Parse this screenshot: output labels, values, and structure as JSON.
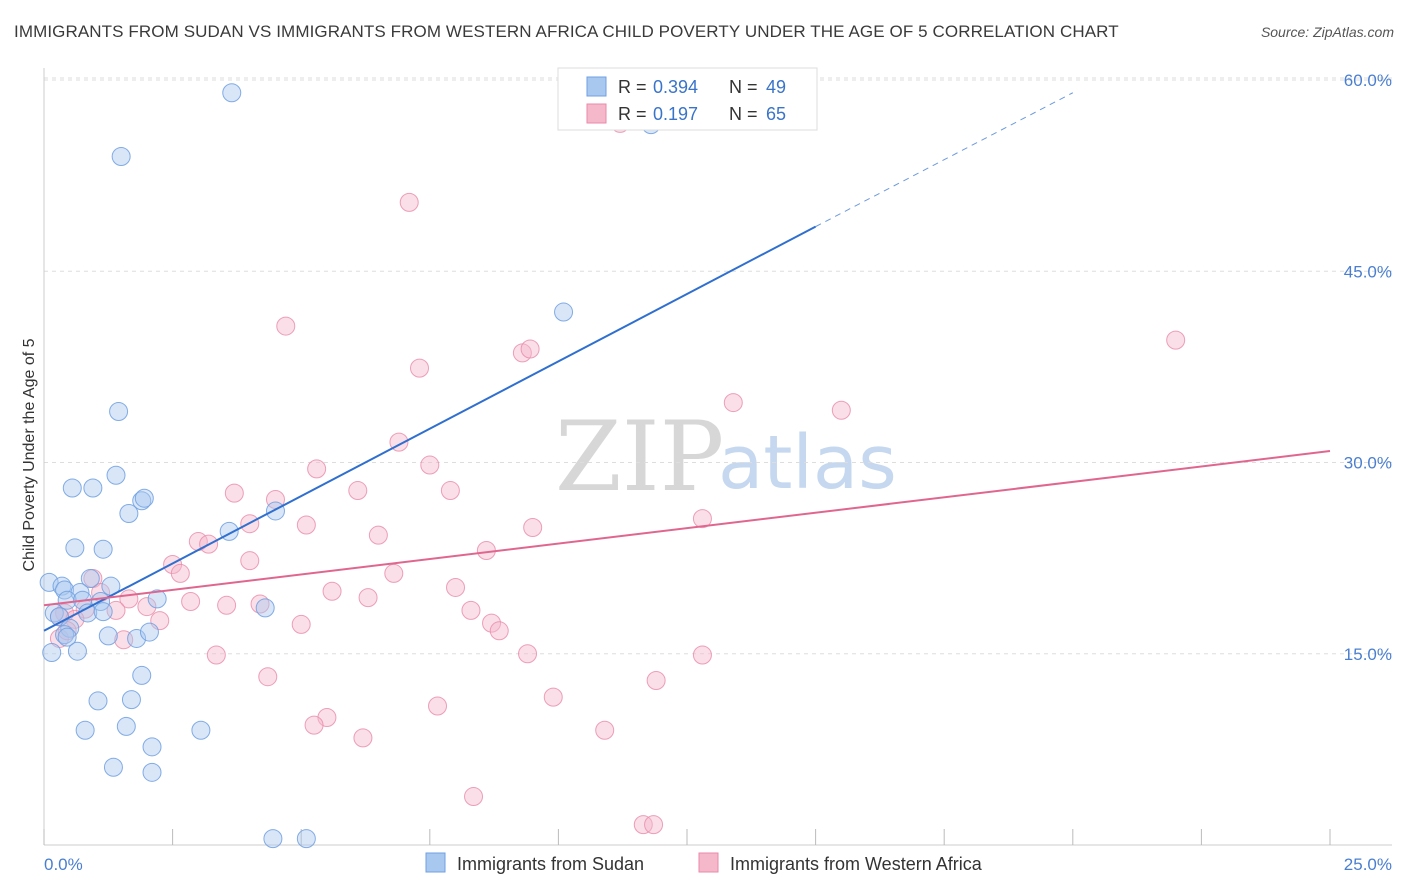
{
  "title": "IMMIGRANTS FROM SUDAN VS IMMIGRANTS FROM WESTERN AFRICA CHILD POVERTY UNDER THE AGE OF 5 CORRELATION CHART",
  "source": "Source: ZipAtlas.com",
  "watermark": {
    "zip": "ZIP",
    "atlas": "atlas"
  },
  "legend": {
    "r_label": "R =",
    "n_label": "N =",
    "sudan_r": "0.394",
    "sudan_n": "49",
    "wa_r": "0.197",
    "wa_n": "65"
  },
  "bottom_legend": {
    "sudan": "Immigrants from Sudan",
    "wa": "Immigrants from Western Africa"
  },
  "colors": {
    "sudan_fill": "#a9c8f0",
    "sudan_stroke": "#6f9fe0",
    "sudan_line": "#2f6fcf",
    "wa_fill": "#f5b8cb",
    "wa_stroke": "#e98aa8",
    "wa_line": "#e06690",
    "grid": "#dddddd",
    "tick_text": "#4a7fcf"
  },
  "chart_data": {
    "type": "scatter",
    "title": "IMMIGRANTS FROM SUDAN VS IMMIGRANTS FROM WESTERN AFRICA CHILD POVERTY UNDER THE AGE OF 5 CORRELATION CHART",
    "xlabel": "",
    "ylabel": "Child Poverty Under the Age of 5",
    "xlim": [
      0,
      25
    ],
    "ylim": [
      0,
      63
    ],
    "x_ticks": [
      "0.0%",
      "25.0%"
    ],
    "y_ticks": [
      {
        "value": 15,
        "label": "15.0%"
      },
      {
        "value": 30,
        "label": "30.0%"
      },
      {
        "value": 45,
        "label": "45.0%"
      },
      {
        "value": 60,
        "label": "60.0%"
      }
    ],
    "grid": true,
    "legend_position": "top-center",
    "series": [
      {
        "name": "Immigrants from Sudan",
        "r": 0.394,
        "n": 49,
        "trend": {
          "x0": 0.0,
          "y0": 16.8,
          "x1": 15.0,
          "y1": 48.5,
          "dashed_to_x": 20.0,
          "dashed_to_y": 59.0
        },
        "points": [
          [
            3.65,
            59.0
          ],
          [
            1.5,
            54.0
          ],
          [
            11.8,
            56.5
          ],
          [
            10.1,
            41.8
          ],
          [
            1.45,
            34.0
          ],
          [
            1.4,
            29.0
          ],
          [
            0.55,
            28.0
          ],
          [
            0.95,
            28.0
          ],
          [
            1.9,
            27.0
          ],
          [
            1.95,
            27.2
          ],
          [
            1.65,
            26.0
          ],
          [
            4.5,
            26.2
          ],
          [
            3.6,
            24.6
          ],
          [
            0.6,
            23.3
          ],
          [
            1.15,
            23.2
          ],
          [
            0.1,
            20.6
          ],
          [
            0.35,
            20.3
          ],
          [
            0.4,
            20.0
          ],
          [
            0.9,
            20.9
          ],
          [
            0.7,
            19.8
          ],
          [
            1.3,
            20.3
          ],
          [
            0.45,
            19.2
          ],
          [
            0.75,
            19.2
          ],
          [
            1.1,
            19.1
          ],
          [
            2.2,
            19.3
          ],
          [
            0.2,
            18.2
          ],
          [
            0.3,
            17.9
          ],
          [
            0.85,
            18.2
          ],
          [
            1.15,
            18.3
          ],
          [
            0.5,
            17.0
          ],
          [
            4.3,
            18.6
          ],
          [
            0.4,
            16.5
          ],
          [
            0.45,
            16.3
          ],
          [
            1.25,
            16.4
          ],
          [
            1.8,
            16.2
          ],
          [
            2.05,
            16.7
          ],
          [
            0.15,
            15.1
          ],
          [
            0.65,
            15.2
          ],
          [
            1.9,
            13.3
          ],
          [
            1.05,
            11.3
          ],
          [
            1.7,
            11.4
          ],
          [
            0.8,
            9.0
          ],
          [
            1.6,
            9.3
          ],
          [
            3.05,
            9.0
          ],
          [
            2.1,
            7.7
          ],
          [
            1.35,
            6.1
          ],
          [
            2.1,
            5.7
          ],
          [
            4.45,
            0.5
          ],
          [
            5.1,
            0.5
          ]
        ]
      },
      {
        "name": "Immigrants from Western Africa",
        "r": 0.197,
        "n": 65,
        "trend": {
          "x0": 0.0,
          "y0": 18.8,
          "x1": 25.0,
          "y1": 30.9
        },
        "points": [
          [
            7.1,
            50.4
          ],
          [
            11.2,
            56.6
          ],
          [
            4.7,
            40.7
          ],
          [
            9.3,
            38.6
          ],
          [
            9.45,
            38.9
          ],
          [
            7.3,
            37.4
          ],
          [
            22.0,
            39.6
          ],
          [
            13.4,
            34.7
          ],
          [
            15.5,
            34.1
          ],
          [
            6.9,
            31.6
          ],
          [
            7.5,
            29.8
          ],
          [
            5.3,
            29.5
          ],
          [
            3.7,
            27.6
          ],
          [
            4.5,
            27.1
          ],
          [
            6.1,
            27.8
          ],
          [
            7.9,
            27.8
          ],
          [
            12.8,
            25.6
          ],
          [
            4.0,
            25.2
          ],
          [
            5.1,
            25.1
          ],
          [
            9.5,
            24.9
          ],
          [
            6.5,
            24.3
          ],
          [
            3.0,
            23.8
          ],
          [
            3.2,
            23.6
          ],
          [
            8.6,
            23.1
          ],
          [
            2.5,
            22.0
          ],
          [
            4.0,
            22.3
          ],
          [
            2.65,
            21.3
          ],
          [
            6.8,
            21.3
          ],
          [
            0.95,
            20.9
          ],
          [
            8.0,
            20.2
          ],
          [
            5.6,
            19.9
          ],
          [
            1.1,
            19.8
          ],
          [
            1.65,
            19.3
          ],
          [
            6.3,
            19.4
          ],
          [
            2.85,
            19.1
          ],
          [
            3.55,
            18.8
          ],
          [
            4.2,
            18.9
          ],
          [
            2.0,
            18.7
          ],
          [
            8.3,
            18.4
          ],
          [
            0.4,
            18.2
          ],
          [
            0.8,
            18.5
          ],
          [
            1.4,
            18.4
          ],
          [
            0.3,
            17.9
          ],
          [
            0.6,
            17.7
          ],
          [
            2.25,
            17.6
          ],
          [
            5.0,
            17.3
          ],
          [
            8.7,
            17.4
          ],
          [
            8.85,
            16.8
          ],
          [
            1.55,
            16.1
          ],
          [
            0.3,
            16.2
          ],
          [
            9.4,
            15.0
          ],
          [
            12.8,
            14.9
          ],
          [
            3.35,
            14.9
          ],
          [
            4.35,
            13.2
          ],
          [
            11.9,
            12.9
          ],
          [
            9.9,
            11.6
          ],
          [
            7.65,
            10.9
          ],
          [
            5.5,
            10.0
          ],
          [
            5.25,
            9.4
          ],
          [
            6.2,
            8.4
          ],
          [
            10.9,
            9.0
          ],
          [
            8.35,
            3.8
          ],
          [
            11.65,
            1.6
          ],
          [
            11.85,
            1.6
          ],
          [
            0.45,
            16.8
          ]
        ]
      }
    ]
  }
}
